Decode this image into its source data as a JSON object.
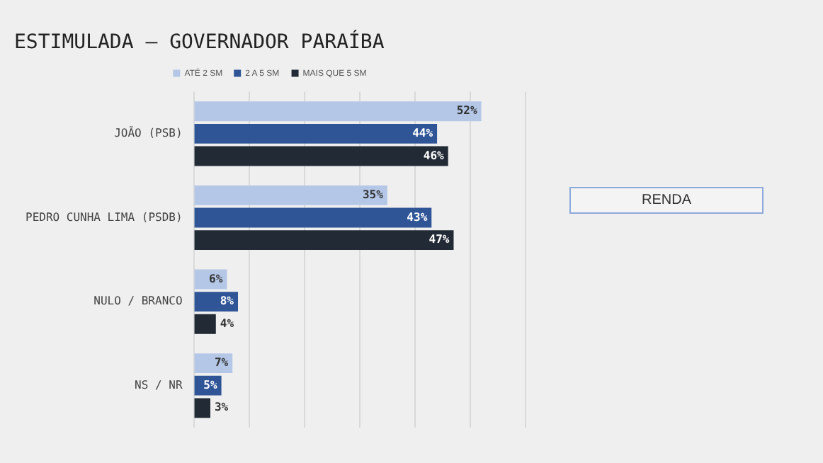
{
  "chart_data": {
    "type": "bar",
    "orientation": "horizontal",
    "title": "ESTIMULADA – GOVERNADOR PARAÍBA",
    "categories": [
      "JOÃO (PSB)",
      "PEDRO CUNHA LIMA (PSDB)",
      "NULO / BRANCO",
      "NS / NR"
    ],
    "series": [
      {
        "name": "ATÉ 2 SM",
        "color": "#b4c7e7",
        "values": [
          52,
          35,
          6,
          7
        ],
        "value_labels": [
          "52%",
          "35%",
          "6%",
          "7%"
        ]
      },
      {
        "name": "2 A 5 SM",
        "color": "#2f5597",
        "values": [
          44,
          43,
          8,
          5
        ],
        "value_labels": [
          "44%",
          "43%",
          "8%",
          "5%"
        ]
      },
      {
        "name": "MAIS QUE 5 SM",
        "color": "#222a35",
        "values": [
          46,
          47,
          4,
          3
        ],
        "value_labels": [
          "46%",
          "47%",
          "4%",
          "3%"
        ]
      }
    ],
    "xlim": [
      0,
      60
    ],
    "xticks": [
      {
        "value": 0,
        "label": null
      },
      {
        "value": 10,
        "label": null
      },
      {
        "value": 20,
        "label": null
      },
      {
        "value": 30,
        "label": null
      },
      {
        "value": 40,
        "label": null
      },
      {
        "value": 50,
        "label": null
      },
      {
        "value": 60,
        "label": null
      }
    ],
    "tick_labels": "y",
    "grid": "x",
    "legend": "top",
    "annotations": [
      "RENDA"
    ]
  }
}
